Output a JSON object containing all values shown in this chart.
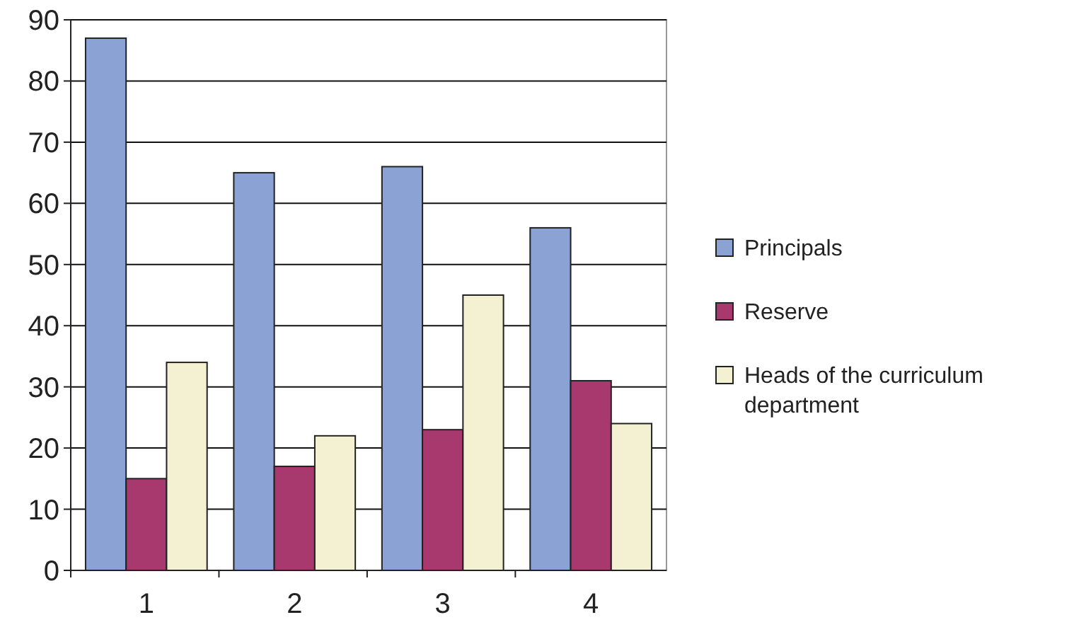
{
  "chart_data": {
    "type": "bar",
    "categories": [
      "1",
      "2",
      "3",
      "4"
    ],
    "series": [
      {
        "name": "Principals",
        "color": "#8aa2d4",
        "values": [
          87,
          65,
          66,
          56
        ]
      },
      {
        "name": "Reserve",
        "color": "#a8396f",
        "values": [
          15,
          17,
          23,
          31
        ]
      },
      {
        "name": "Heads of the curriculum department",
        "color": "#f3f1d2",
        "values": [
          34,
          22,
          45,
          24
        ]
      }
    ],
    "ylim": [
      0,
      90
    ],
    "yticks": [
      0,
      10,
      20,
      30,
      40,
      50,
      60,
      70,
      80,
      90
    ],
    "grid": "y",
    "legend": "right"
  }
}
